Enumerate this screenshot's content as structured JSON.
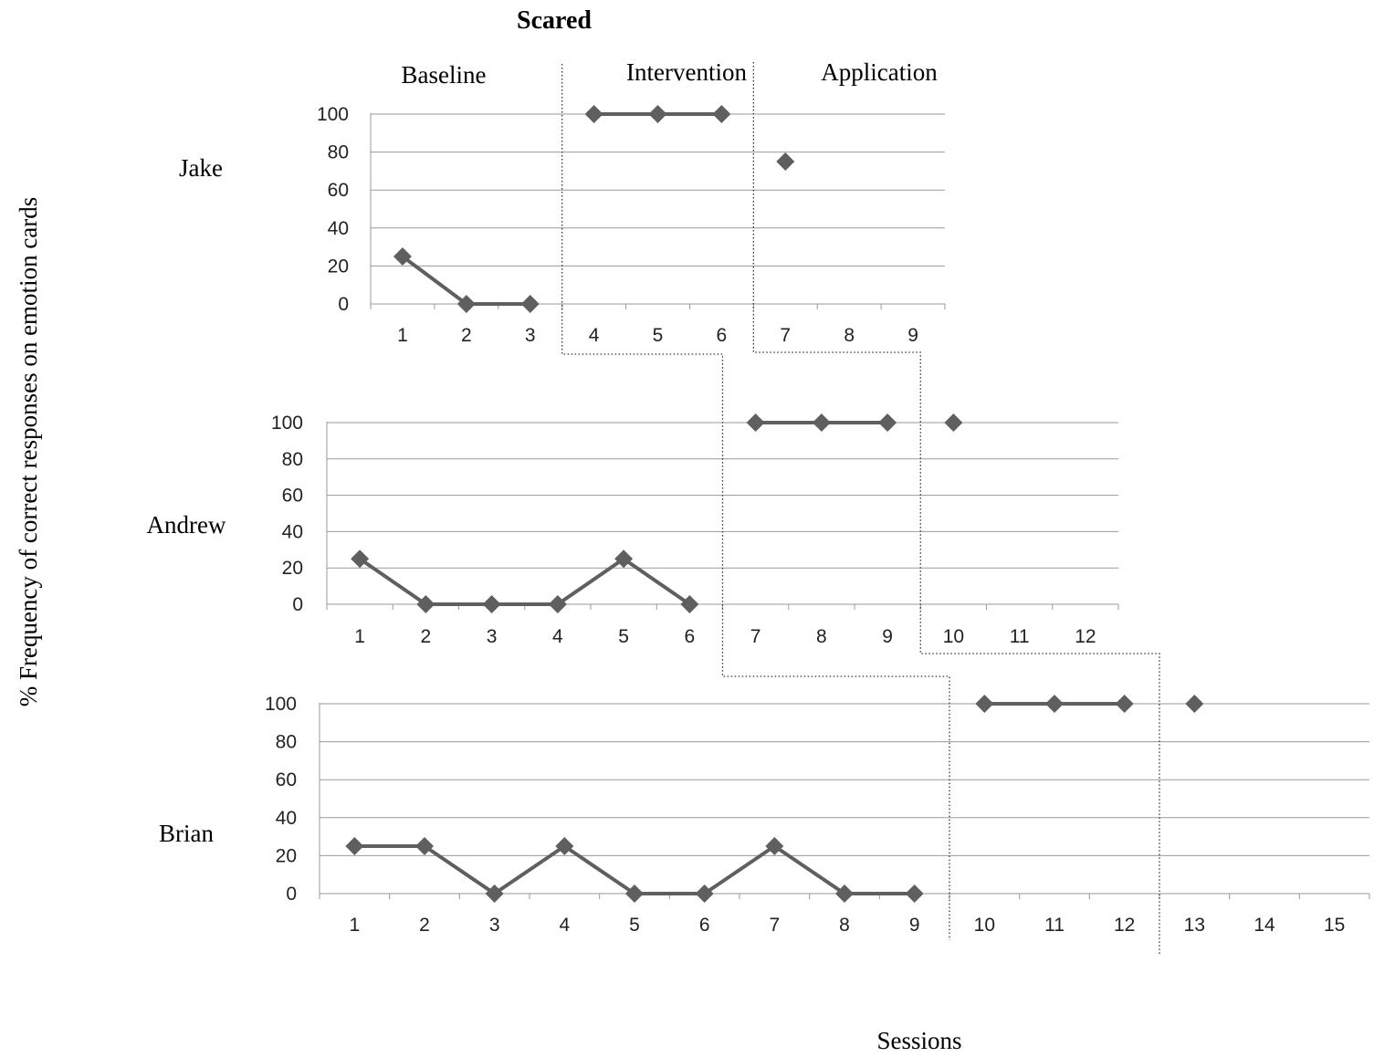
{
  "chart_data": {
    "type": "line",
    "title": "Scared",
    "xlabel": "Sessions",
    "ylabel": "% Frequency of correct responses on emotion cards",
    "phases": [
      "Baseline",
      "Intervention",
      "Application"
    ],
    "ylim": [
      0,
      100
    ],
    "yticks": [
      0,
      20,
      40,
      60,
      80,
      100
    ],
    "grid": true,
    "marker": "diamond",
    "line_color": "#5f5f5f",
    "panels": [
      {
        "name": "Jake",
        "x": [
          1,
          2,
          3,
          4,
          5,
          6,
          7,
          8,
          9
        ],
        "segments": [
          {
            "phase": "Baseline",
            "x": [
              1,
              2,
              3
            ],
            "y": [
              25,
              0,
              0
            ]
          },
          {
            "phase": "Intervention",
            "x": [
              4,
              5,
              6
            ],
            "y": [
              100,
              100,
              100
            ]
          },
          {
            "phase": "Application",
            "x": [
              7
            ],
            "y": [
              75
            ]
          }
        ]
      },
      {
        "name": "Andrew",
        "x": [
          1,
          2,
          3,
          4,
          5,
          6,
          7,
          8,
          9,
          10,
          11,
          12
        ],
        "segments": [
          {
            "phase": "Baseline",
            "x": [
              1,
              2,
              3,
              4,
              5,
              6
            ],
            "y": [
              25,
              0,
              0,
              0,
              25,
              0
            ]
          },
          {
            "phase": "Intervention",
            "x": [
              7,
              8,
              9
            ],
            "y": [
              100,
              100,
              100
            ]
          },
          {
            "phase": "Application",
            "x": [
              10
            ],
            "y": [
              100
            ]
          }
        ]
      },
      {
        "name": "Brian",
        "x": [
          1,
          2,
          3,
          4,
          5,
          6,
          7,
          8,
          9,
          10,
          11,
          12,
          13,
          14,
          15
        ],
        "segments": [
          {
            "phase": "Baseline",
            "x": [
              1,
              2,
              3,
              4,
              5,
              6,
              7,
              8,
              9
            ],
            "y": [
              25,
              25,
              0,
              25,
              0,
              0,
              25,
              0,
              0
            ]
          },
          {
            "phase": "Intervention",
            "x": [
              10,
              11,
              12
            ],
            "y": [
              100,
              100,
              100
            ]
          },
          {
            "phase": "Application",
            "x": [
              13
            ],
            "y": [
              100
            ]
          }
        ]
      }
    ]
  }
}
